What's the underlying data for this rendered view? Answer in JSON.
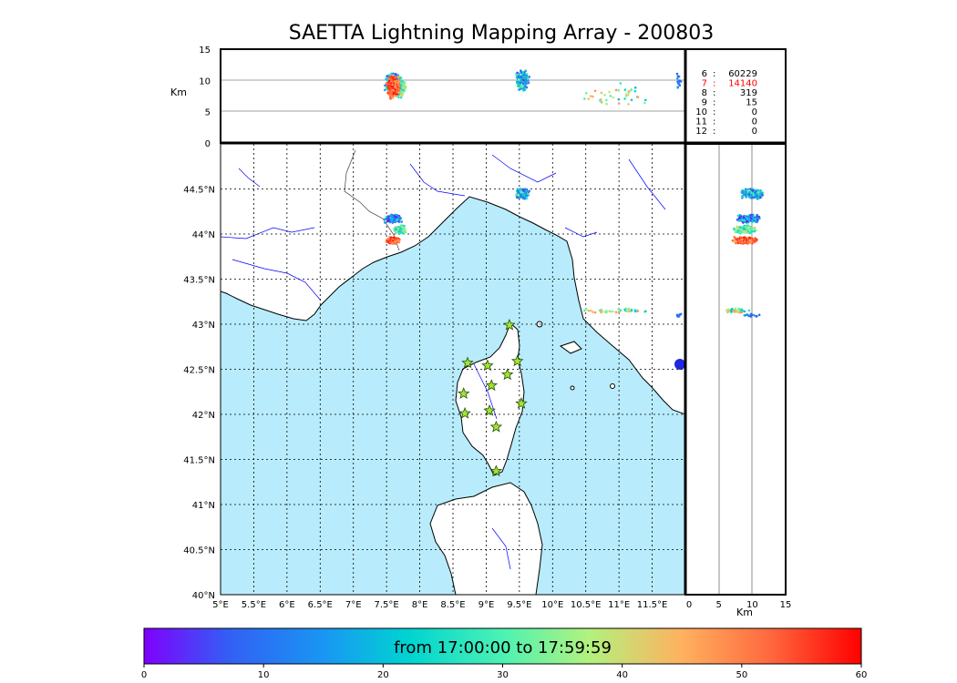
{
  "title": "SAETTA Lightning Mapping Array - 200803",
  "altitude_panel": {
    "ylabel": "Km",
    "yticks": [
      "15",
      "10",
      "5",
      "0"
    ],
    "yvalues": [
      15,
      10,
      5,
      0
    ]
  },
  "side_panel": {
    "xlabel": "Km",
    "xticks": [
      "0",
      "5",
      "10",
      "15"
    ],
    "xvalues": [
      0,
      5,
      10,
      15
    ]
  },
  "station_counts": [
    {
      "stations": "6",
      "count": "60229",
      "highlight": false
    },
    {
      "stations": "7",
      "count": "14140",
      "highlight": true
    },
    {
      "stations": "8",
      "count": "319",
      "highlight": false
    },
    {
      "stations": "9",
      "count": "15",
      "highlight": false
    },
    {
      "stations": "10",
      "count": "0",
      "highlight": false
    },
    {
      "stations": "11",
      "count": "0",
      "highlight": false
    },
    {
      "stations": "12",
      "count": "0",
      "highlight": false
    }
  ],
  "map": {
    "lon_range": [
      5,
      12
    ],
    "lat_range": [
      40,
      45
    ],
    "lon_ticks": [
      "5°E",
      "5.5°E",
      "6°E",
      "6.5°E",
      "7°E",
      "7.5°E",
      "8°E",
      "8.5°E",
      "9°E",
      "9.5°E",
      "10°E",
      "10.5°E",
      "11°E",
      "11.5°E"
    ],
    "lat_ticks": [
      "44.5°N",
      "44°N",
      "43.5°N",
      "43°N",
      "42.5°N",
      "42°N",
      "41.5°N",
      "41°N",
      "40.5°N",
      "40°N"
    ],
    "sea_color": "#b8ecfc",
    "land_color": "#ffffff",
    "river_color": "#0000ff",
    "station_marker": "star",
    "station_color": "#9ee637",
    "stations": [
      {
        "lon": 9.35,
        "lat": 42.99
      },
      {
        "lon": 8.72,
        "lat": 42.57
      },
      {
        "lon": 9.02,
        "lat": 42.54
      },
      {
        "lon": 9.47,
        "lat": 42.59
      },
      {
        "lon": 9.32,
        "lat": 42.44
      },
      {
        "lon": 9.08,
        "lat": 42.32
      },
      {
        "lon": 8.66,
        "lat": 42.23
      },
      {
        "lon": 9.53,
        "lat": 42.12
      },
      {
        "lon": 9.05,
        "lat": 42.04
      },
      {
        "lon": 8.68,
        "lat": 42.01
      },
      {
        "lon": 9.15,
        "lat": 41.86
      },
      {
        "lon": 9.15,
        "lat": 41.37
      }
    ],
    "lightning_clusters": [
      {
        "lon": 7.65,
        "lat": 44.15,
        "color_band": "early"
      },
      {
        "lon": 7.7,
        "lat": 43.95,
        "color_band": "late"
      },
      {
        "lon": 9.6,
        "lat": 44.45,
        "color_band": "early"
      }
    ]
  },
  "colorbar": {
    "label": "from 17:00:00 to 17:59:59",
    "ticks": [
      "0",
      "10",
      "20",
      "30",
      "40",
      "50",
      "60"
    ],
    "tick_values": [
      0,
      10,
      20,
      30,
      40,
      50,
      60
    ],
    "colors": [
      "#7f00ff",
      "#3260f4",
      "#1996f3",
      "#00d4d1",
      "#4cf2b3",
      "#b2f27e",
      "#ffb15e",
      "#ff6a3f",
      "#ff0000"
    ]
  }
}
